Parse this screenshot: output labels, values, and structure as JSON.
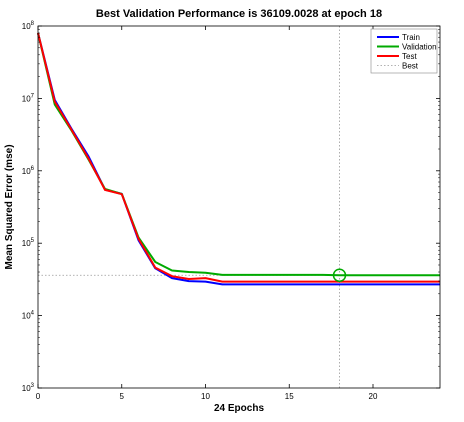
{
  "chart_data": {
    "type": "line",
    "title": "Best Validation Performance is 36109.0028 at epoch 18",
    "xlabel": "24 Epochs",
    "ylabel": "Mean Squared Error  (mse)",
    "xlim": [
      0,
      24
    ],
    "ylim": [
      1000,
      100000000
    ],
    "yscale": "log",
    "xticks": [
      "0",
      "5",
      "10",
      "15",
      "20"
    ],
    "yticks": [
      {
        "base": "10",
        "exp": "3"
      },
      {
        "base": "10",
        "exp": "4"
      },
      {
        "base": "10",
        "exp": "5"
      },
      {
        "base": "10",
        "exp": "6"
      },
      {
        "base": "10",
        "exp": "7"
      },
      {
        "base": "10",
        "exp": "8"
      }
    ],
    "grid": false,
    "legend_position": "top-right",
    "x": [
      0,
      1,
      2,
      3,
      4,
      5,
      6,
      7,
      8,
      9,
      10,
      11,
      12,
      13,
      14,
      15,
      16,
      17,
      18,
      19,
      20,
      21,
      22,
      23,
      24
    ],
    "series": [
      {
        "name": "Train",
        "color": "#0000ff",
        "values": [
          80000000,
          9500000,
          3800000,
          1600000,
          550000,
          480000,
          110000,
          45000,
          33000,
          30000,
          29500,
          27000,
          27000,
          27000,
          27000,
          27000,
          27000,
          27000,
          27000,
          27000,
          27000,
          27000,
          27000,
          27000,
          27000
        ]
      },
      {
        "name": "Validation",
        "color": "#00aa00",
        "values": [
          80000000,
          8200000,
          3600000,
          1450000,
          560000,
          480000,
          120000,
          55000,
          42000,
          40000,
          39000,
          36500,
          36500,
          36500,
          36500,
          36500,
          36500,
          36500,
          36109,
          36109,
          36109,
          36109,
          36109,
          36109,
          36109
        ]
      },
      {
        "name": "Test",
        "color": "#ff0000",
        "values": [
          80000000,
          9000000,
          3700000,
          1500000,
          545000,
          475000,
          115000,
          46000,
          35000,
          32000,
          33000,
          29500,
          29500,
          29500,
          29500,
          29500,
          29500,
          29500,
          29500,
          29500,
          29500,
          29500,
          29500,
          29500,
          29500
        ]
      }
    ],
    "best": {
      "name": "Best",
      "epoch": 18,
      "value": 36109.0028,
      "color": "#999999"
    }
  }
}
